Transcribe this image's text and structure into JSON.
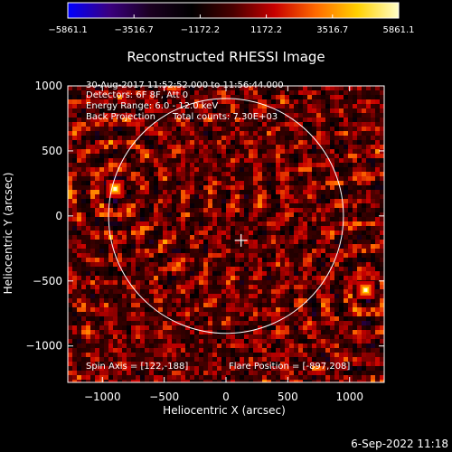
{
  "plot": {
    "title": "Reconstructed RHESSI Image",
    "xlabel": "Heliocentric X (arcsec)",
    "ylabel": "Heliocentric Y (arcsec)",
    "info_lines": [
      "30-Aug-2017 11:52:52.000 to 11:56:44.000",
      "Detectors: 6F 8F, Att 0",
      "Energy Range: 6.0 - 12.0 keV",
      "Back Projection      Total counts: 7.30E+03"
    ],
    "spin_axis": "Spin Axis = [122,-188]",
    "flare_position": "Flare Position = [-897,208]",
    "timestamp": "6-Sep-2022 11:18"
  },
  "colorbar": {
    "min": -5861.1,
    "max": 5861.1,
    "tick_labels": [
      "-5861.1",
      "-3516.7",
      "-1172.2",
      "1172.2",
      "3516.7",
      "5861.1"
    ],
    "colors": [
      "#0000ff",
      "#3a0080",
      "#1a0020",
      "#000000",
      "#4a0000",
      "#c80000",
      "#ff6a00",
      "#ffd000",
      "#ffffc8"
    ]
  },
  "chart_data": {
    "type": "heatmap",
    "title": "Reconstructed RHESSI Image",
    "xlabel": "Heliocentric X (arcsec)",
    "ylabel": "Heliocentric Y (arcsec)",
    "xlim": [
      -1280,
      1280
    ],
    "ylim": [
      -1280,
      1000
    ],
    "xticks": [
      -1000,
      -500,
      0,
      500,
      1000
    ],
    "yticks": [
      -1000,
      -500,
      0,
      500,
      1000
    ],
    "solar_limb_radius": 950,
    "solar_limb_color": "#ffffff",
    "bright_sources": [
      {
        "x": -897,
        "y": 208,
        "value": 5861.1
      },
      {
        "x": 1130,
        "y": -570,
        "value": 5200
      }
    ],
    "spin_axis_marker": {
      "x": 122,
      "y": -188
    },
    "colorbar_range": [
      -5861.1,
      5861.1
    ]
  }
}
